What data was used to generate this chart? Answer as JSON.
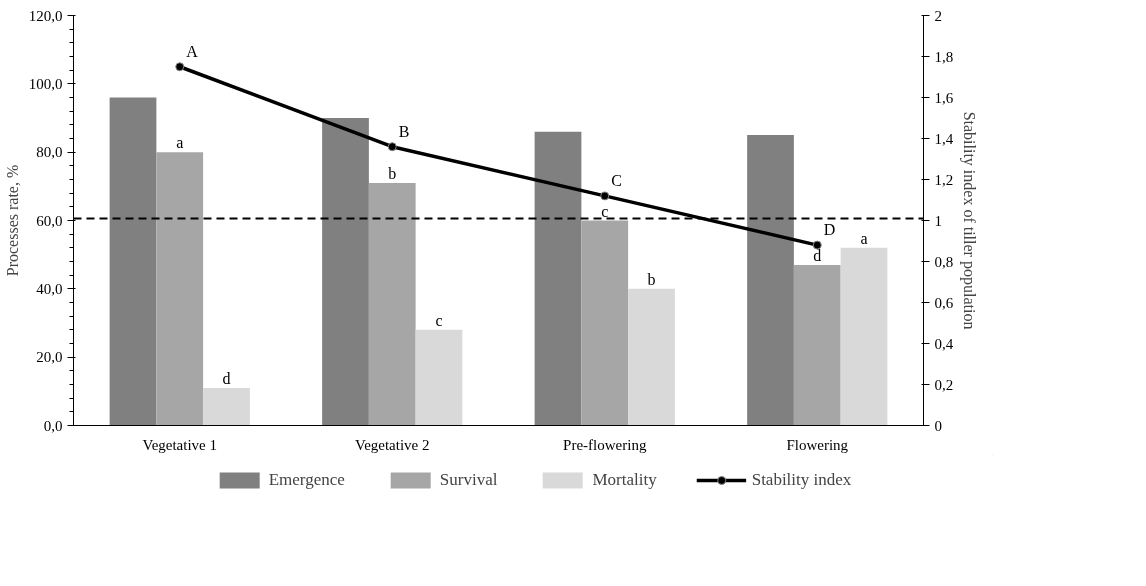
{
  "chart_data": {
    "type": "bar",
    "categories": [
      "Vegetative 1",
      "Vegetative 2",
      "Pre-flowering",
      "Flowering"
    ],
    "ylabel": "Processes rate, %",
    "y2label": "Stability index of tiller population",
    "ylim": [
      0,
      120
    ],
    "yticks": [
      {
        "value": 0,
        "label": "0,0"
      },
      {
        "value": 20,
        "label": "20,0"
      },
      {
        "value": 40,
        "label": "40,0"
      },
      {
        "value": 60,
        "label": "60,0"
      },
      {
        "value": 80,
        "label": "80,0"
      },
      {
        "value": 100,
        "label": "100,0"
      },
      {
        "value": 120,
        "label": "120,0"
      }
    ],
    "y2lim": [
      0,
      2
    ],
    "y2ticks": [
      0,
      {
        "value": 0.2,
        "label": "0,2"
      },
      {
        "value": 0.4,
        "label": "0,4"
      },
      {
        "value": 0.6,
        "label": "0,6"
      },
      {
        "value": 0.8,
        "label": "0,8"
      },
      1,
      {
        "value": 1.2,
        "label": "1,2"
      },
      {
        "value": 1.4,
        "label": "1,4"
      },
      {
        "value": 1.6,
        "label": "1,6"
      },
      {
        "value": 1.8,
        "label": "1,8"
      },
      2
    ],
    "series": [
      {
        "name": "Emergence",
        "color": "#808080",
        "values": [
          96,
          90,
          86,
          85
        ]
      },
      {
        "name": "Survival",
        "color": "#a6a6a6",
        "values": [
          80,
          71,
          60,
          47
        ],
        "value_labels": [
          "a",
          "b",
          "c",
          "d"
        ]
      },
      {
        "name": "Mortality",
        "color": "#d9d9d9",
        "values": [
          11,
          28,
          40,
          52
        ],
        "value_labels": [
          "d",
          "c",
          "b",
          "a"
        ]
      },
      {
        "name": "Stability index",
        "type": "line",
        "axis": "y2",
        "color": "#000000",
        "marker": "circle",
        "values": [
          1.75,
          1.36,
          1.12,
          0.88
        ],
        "value_labels": [
          "A",
          "B",
          "C",
          "D"
        ]
      }
    ],
    "ref_lines": [
      {
        "axis": "y2",
        "value": 1.01,
        "label": null,
        "color": "#000000",
        "line_style": "dashed"
      }
    ],
    "grid": false,
    "legend": "bottom"
  }
}
